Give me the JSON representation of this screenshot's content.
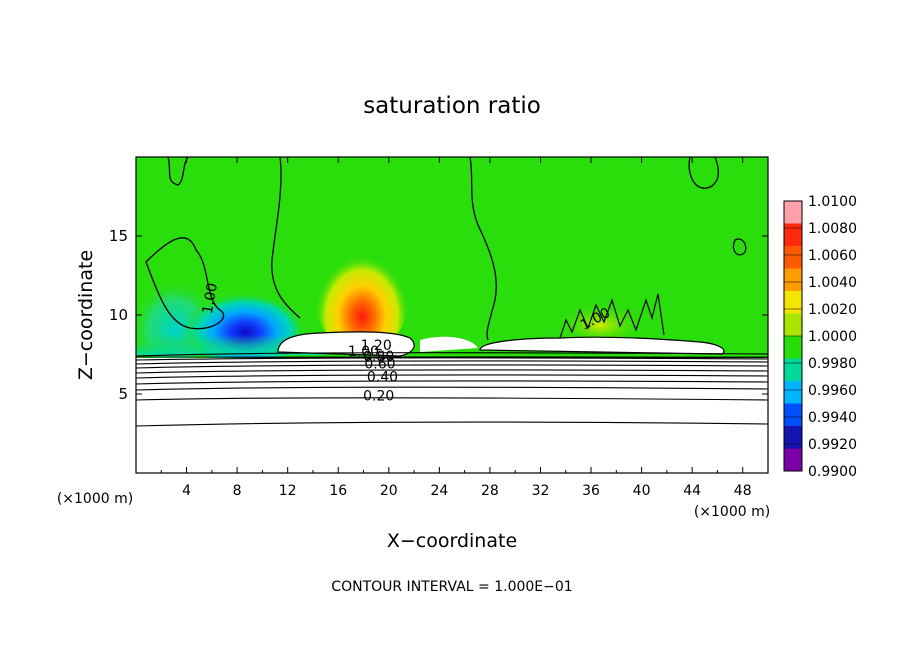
{
  "chart_data": {
    "type": "heatmap",
    "title": "saturation ratio",
    "xlabel": "X−coordinate",
    "ylabel": "Z−coordinate",
    "x_unit_left": "(×1000 m)",
    "x_unit_right": "(×1000 m)",
    "xlim": [
      0,
      50
    ],
    "ylim": [
      0,
      20
    ],
    "xticks": [
      4,
      8,
      12,
      16,
      20,
      24,
      28,
      32,
      36,
      40,
      44,
      48
    ],
    "yticks": [
      5,
      10,
      15
    ],
    "footer": "CONTOUR INTERVAL = 1.000E−01",
    "colorbar": {
      "ticks": [
        "1.0100",
        "1.0080",
        "1.0060",
        "1.0040",
        "1.0020",
        "1.0000",
        "0.9980",
        "0.9960",
        "0.9940",
        "0.9920",
        "0.9900"
      ],
      "colors": [
        "#ff9fa8",
        "#ff2a0d",
        "#ff5a00",
        "#ff9d00",
        "#f4e600",
        "#a8e600",
        "#28de08",
        "#00d89a",
        "#00b4ff",
        "#0050ff",
        "#1414b0",
        "#7a00a8"
      ]
    },
    "contour_labels": [
      {
        "text": "1.00",
        "x": 6.2,
        "y": 11.0
      },
      {
        "text": "1.20",
        "x": 19.0,
        "y": 7.8
      },
      {
        "text": "1.00",
        "x": 18.0,
        "y": 7.4
      },
      {
        "text": "0.80",
        "x": 19.2,
        "y": 7.1
      },
      {
        "text": "0.60",
        "x": 19.3,
        "y": 6.6
      },
      {
        "text": "0.40",
        "x": 19.5,
        "y": 5.8
      },
      {
        "text": "0.20",
        "x": 19.2,
        "y": 4.6
      },
      {
        "text": "1.00",
        "x": 36.5,
        "y": 9.5
      }
    ],
    "contour_levels": [
      {
        "level": 0.1,
        "z": 3.1
      },
      {
        "level": 0.2,
        "z": 4.7
      },
      {
        "level": 0.3,
        "z": 5.4
      },
      {
        "level": 0.4,
        "z": 5.9
      },
      {
        "level": 0.5,
        "z": 6.3
      },
      {
        "level": 0.6,
        "z": 6.6
      },
      {
        "level": 0.7,
        "z": 6.9
      },
      {
        "level": 0.8,
        "z": 7.1
      },
      {
        "level": 0.9,
        "z": 7.3
      },
      {
        "level": 1.0,
        "z": 7.5
      }
    ]
  }
}
